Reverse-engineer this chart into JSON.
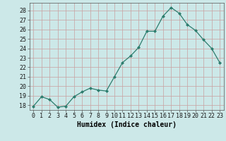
{
  "xlabel": "Humidex (Indice chaleur)",
  "x": [
    0,
    1,
    2,
    3,
    4,
    5,
    6,
    7,
    8,
    9,
    10,
    11,
    12,
    13,
    14,
    15,
    16,
    17,
    18,
    19,
    20,
    21,
    22,
    23
  ],
  "y": [
    17.9,
    18.9,
    18.6,
    17.8,
    17.9,
    18.9,
    19.4,
    19.8,
    19.6,
    19.5,
    21.0,
    22.5,
    23.2,
    24.1,
    25.8,
    25.8,
    27.4,
    28.3,
    27.7,
    26.5,
    25.9,
    24.9,
    24.0,
    22.5
  ],
  "line_color": "#2d7d6e",
  "marker": "D",
  "marker_size": 2.5,
  "bg_color": "#cce8e8",
  "grid_color": "#b0cece",
  "ylim": [
    17.5,
    28.8
  ],
  "yticks": [
    18,
    19,
    20,
    21,
    22,
    23,
    24,
    25,
    26,
    27,
    28
  ],
  "tick_fontsize": 6,
  "label_fontsize": 7
}
